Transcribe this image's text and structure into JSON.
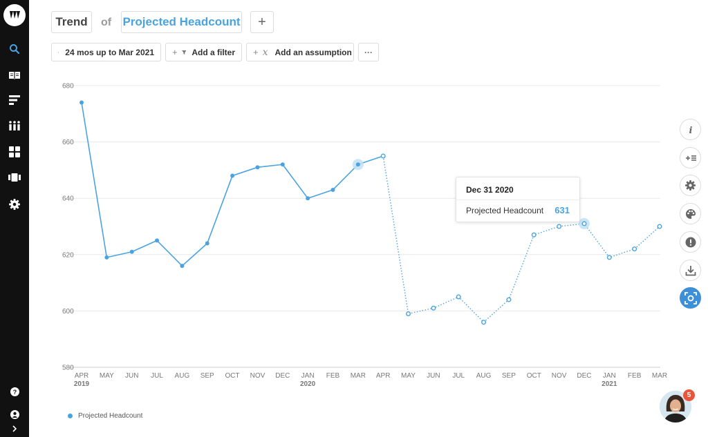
{
  "sidebar": {
    "logo_icon": "brand-logo-icon",
    "items": [
      {
        "name": "search",
        "icon": "search-icon"
      },
      {
        "name": "library",
        "icon": "book-icon"
      },
      {
        "name": "reports",
        "icon": "list-bars-icon"
      },
      {
        "name": "people",
        "icon": "people-grid-icon"
      },
      {
        "name": "dashboards",
        "icon": "grid-icon"
      },
      {
        "name": "storyboards",
        "icon": "slides-icon"
      },
      {
        "name": "settings",
        "icon": "gear-icon"
      }
    ],
    "bottom": [
      {
        "name": "help",
        "icon": "help-icon"
      },
      {
        "name": "account",
        "icon": "user-icon"
      },
      {
        "name": "expand",
        "icon": "chevron-right-icon"
      }
    ],
    "active_color": "#4aa3df"
  },
  "query": {
    "type_label": "Trend",
    "of_label": "of",
    "metric_label": "Projected Headcount",
    "add_label": "+"
  },
  "filters": {
    "date_range": "24 mos up to Mar 2021",
    "add_filter": "Add a filter",
    "add_assumption": "Add an assumption",
    "more": "···"
  },
  "tooltip": {
    "date": "Dec 31 2020",
    "label": "Projected Headcount",
    "value": "631"
  },
  "right_toolbar": [
    {
      "name": "info",
      "icon": "info-icon"
    },
    {
      "name": "add-calculation",
      "icon": "add-list-icon"
    },
    {
      "name": "settings",
      "icon": "gear-icon"
    },
    {
      "name": "palette",
      "icon": "palette-icon"
    },
    {
      "name": "alert",
      "icon": "alert-icon"
    },
    {
      "name": "download",
      "icon": "download-icon"
    },
    {
      "name": "screenshot",
      "icon": "screenshot-icon",
      "active": true
    }
  ],
  "legend": {
    "label": "Projected Headcount"
  },
  "chat": {
    "badge_count": "5",
    "icon": "support-avatar-icon"
  },
  "colors": {
    "series": "#4aa3df",
    "highlight": "#bfe0f5"
  },
  "chart_data": {
    "type": "line",
    "ylim": [
      580,
      680
    ],
    "yticks": [
      580,
      600,
      620,
      640,
      660,
      680
    ],
    "grid": true,
    "legend_position": "bottom-left",
    "categories": [
      "APR",
      "MAY",
      "JUN",
      "JUL",
      "AUG",
      "SEP",
      "OCT",
      "NOV",
      "DEC",
      "JAN",
      "FEB",
      "MAR",
      "APR",
      "MAY",
      "JUN",
      "JUL",
      "AUG",
      "SEP",
      "OCT",
      "NOV",
      "DEC",
      "JAN",
      "FEB",
      "MAR"
    ],
    "year_labels": [
      {
        "index": 0,
        "label": "2019"
      },
      {
        "index": 9,
        "label": "2020"
      },
      {
        "index": 21,
        "label": "2021"
      }
    ],
    "series": [
      {
        "name": "Projected Headcount",
        "values": [
          674,
          619,
          621,
          625,
          616,
          624,
          648,
          651,
          652,
          640,
          643,
          652,
          655,
          599,
          601,
          605,
          596,
          604,
          627,
          630,
          631,
          619,
          622,
          630
        ],
        "actual_through_index": 12,
        "highlighted_indices": [
          11,
          20
        ]
      }
    ]
  }
}
